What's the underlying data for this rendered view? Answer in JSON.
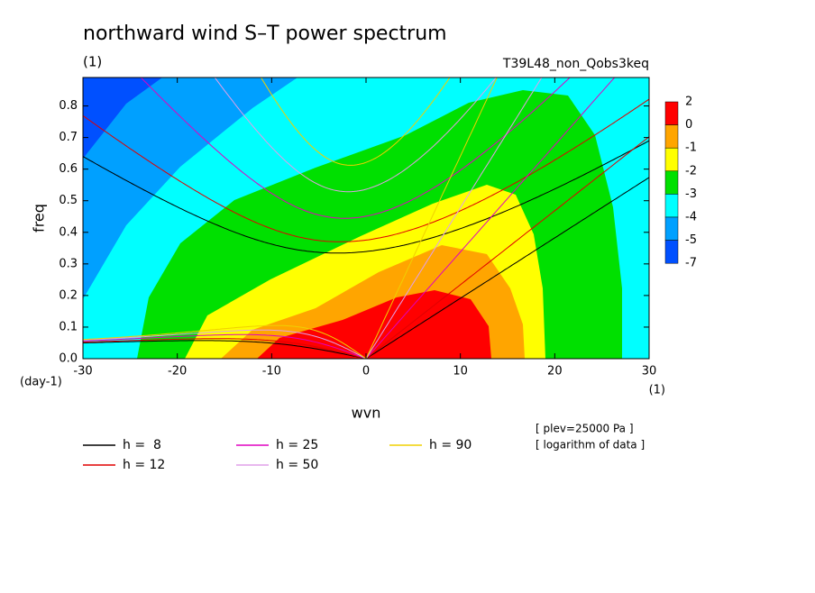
{
  "chart_data": {
    "type": "contour",
    "title": "northward wind S–T power spectrum",
    "subtitle": "(1)",
    "run_label": "T39L48_non_Qobs3keq",
    "x_label": "wvn",
    "y_label": "freq",
    "y_unit": "(day-1)",
    "x_unit": "(1)",
    "notes": [
      "[ plev=25000 Pa ]",
      "[ logarithm of data ]"
    ],
    "xlim": [
      -30,
      30
    ],
    "ylim": [
      0,
      0.89
    ],
    "xticks": [
      -30,
      -20,
      -10,
      0,
      10,
      20,
      30
    ],
    "yticks": [
      {
        "value": 0,
        "label": "0.0"
      },
      0.1,
      0.2,
      0.3,
      0.4,
      0.5,
      0.6,
      0.7,
      0.8
    ],
    "colorbar": {
      "levels": [
        2,
        0,
        -1,
        -2,
        -3,
        -4,
        -5,
        -7
      ],
      "colors": [
        "#ff0000",
        "#ffa500",
        "#ffff00",
        "#00e000",
        "#00ffff",
        "#00a0ff",
        "#0050ff"
      ]
    },
    "series": [
      {
        "name": "h =  8",
        "h": 8,
        "color": "#000000"
      },
      {
        "name": "h = 12",
        "h": 12,
        "color": "#e00000"
      },
      {
        "name": "h = 25",
        "h": 25,
        "color": "#e000c0"
      },
      {
        "name": "h = 50",
        "h": 50,
        "color": "#e0a0e8"
      },
      {
        "name": "h = 90",
        "h": 90,
        "color": "#f0d000"
      }
    ]
  }
}
